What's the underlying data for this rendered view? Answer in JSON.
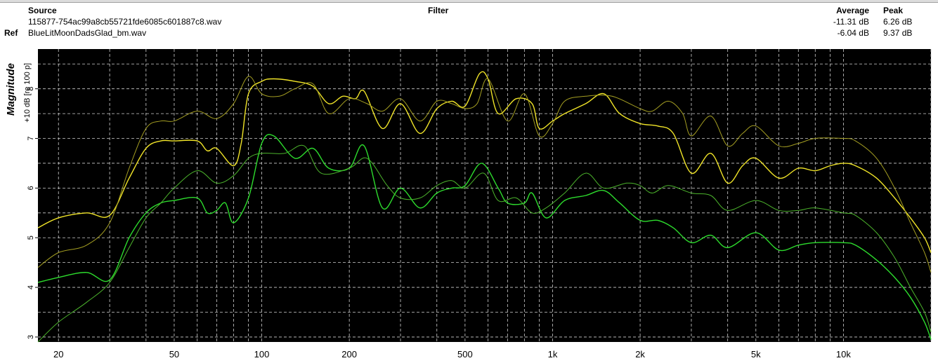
{
  "header": {
    "source_label": "Source",
    "filter_label": "Filter",
    "average_label": "Average",
    "peak_label": "Peak",
    "ref_label": "Ref",
    "source_file": "115877-754ac99a8cb55721fde6085c601887c8.wav",
    "ref_file": "BlueLitMoonDadsGlad_bm.wav",
    "source_average": "-11.31 dB",
    "source_peak": "6.26 dB",
    "ref_average": "-6.04 dB",
    "ref_peak": "9.37 dB"
  },
  "chart_data": {
    "type": "line",
    "ylabel_main": "Magnitude",
    "ylabel_sub": "+10 dB [re 100 p]",
    "xscale": "log",
    "xlim": [
      17,
      20000
    ],
    "ylim": [
      2.9,
      8.8
    ],
    "x_ticks": [
      {
        "v": 20,
        "label": "20"
      },
      {
        "v": 50,
        "label": "50"
      },
      {
        "v": 100,
        "label": "100"
      },
      {
        "v": 200,
        "label": "200"
      },
      {
        "v": 500,
        "label": "500"
      },
      {
        "v": 1000,
        "label": "1k"
      },
      {
        "v": 2000,
        "label": "2k"
      },
      {
        "v": 5000,
        "label": "5k"
      },
      {
        "v": 10000,
        "label": "10k"
      }
    ],
    "y_ticks": [
      3,
      4,
      5,
      6,
      7,
      8
    ],
    "grid": true,
    "background": "#000000",
    "series": [
      {
        "color": "#f0e428",
        "width": 1.4,
        "points": [
          [
            17,
            5.2
          ],
          [
            20,
            5.4
          ],
          [
            25,
            5.5
          ],
          [
            30,
            5.45
          ],
          [
            35,
            6.2
          ],
          [
            40,
            6.8
          ],
          [
            45,
            6.95
          ],
          [
            50,
            6.95
          ],
          [
            60,
            6.95
          ],
          [
            65,
            6.75
          ],
          [
            70,
            6.8
          ],
          [
            80,
            6.45
          ],
          [
            85,
            6.9
          ],
          [
            90,
            7.9
          ],
          [
            100,
            8.15
          ],
          [
            110,
            8.2
          ],
          [
            130,
            8.15
          ],
          [
            150,
            8.05
          ],
          [
            170,
            7.7
          ],
          [
            190,
            7.85
          ],
          [
            210,
            7.8
          ],
          [
            225,
            7.95
          ],
          [
            260,
            7.2
          ],
          [
            300,
            7.7
          ],
          [
            350,
            7.1
          ],
          [
            400,
            7.6
          ],
          [
            450,
            7.75
          ],
          [
            500,
            7.65
          ],
          [
            560,
            8.3
          ],
          [
            600,
            8.2
          ],
          [
            650,
            7.5
          ],
          [
            750,
            7.8
          ],
          [
            850,
            7.7
          ],
          [
            900,
            7.2
          ],
          [
            1000,
            7.35
          ],
          [
            1100,
            7.5
          ],
          [
            1300,
            7.7
          ],
          [
            1500,
            7.9
          ],
          [
            1700,
            7.5
          ],
          [
            2000,
            7.3
          ],
          [
            2300,
            7.25
          ],
          [
            2600,
            7.1
          ],
          [
            3000,
            6.3
          ],
          [
            3500,
            6.7
          ],
          [
            4000,
            6.1
          ],
          [
            4500,
            6.45
          ],
          [
            5000,
            6.6
          ],
          [
            6000,
            6.2
          ],
          [
            7000,
            6.4
          ],
          [
            8000,
            6.35
          ],
          [
            9000,
            6.45
          ],
          [
            10000,
            6.5
          ],
          [
            11000,
            6.45
          ],
          [
            13000,
            6.2
          ],
          [
            15000,
            5.8
          ],
          [
            17000,
            5.4
          ],
          [
            19000,
            5.0
          ],
          [
            20000,
            4.7
          ]
        ]
      },
      {
        "color": "#a49e22",
        "width": 1.0,
        "points": [
          [
            17,
            4.4
          ],
          [
            20,
            4.7
          ],
          [
            25,
            4.85
          ],
          [
            30,
            5.3
          ],
          [
            35,
            6.4
          ],
          [
            40,
            7.2
          ],
          [
            45,
            7.35
          ],
          [
            50,
            7.35
          ],
          [
            60,
            7.55
          ],
          [
            70,
            7.4
          ],
          [
            80,
            7.7
          ],
          [
            90,
            8.25
          ],
          [
            100,
            7.9
          ],
          [
            115,
            7.85
          ],
          [
            130,
            8.0
          ],
          [
            150,
            8.1
          ],
          [
            170,
            7.5
          ],
          [
            200,
            7.8
          ],
          [
            230,
            7.7
          ],
          [
            260,
            7.55
          ],
          [
            300,
            7.8
          ],
          [
            350,
            7.35
          ],
          [
            400,
            7.75
          ],
          [
            450,
            7.7
          ],
          [
            500,
            7.6
          ],
          [
            550,
            7.7
          ],
          [
            600,
            8.2
          ],
          [
            700,
            7.35
          ],
          [
            800,
            7.9
          ],
          [
            900,
            7.05
          ],
          [
            1000,
            7.3
          ],
          [
            1100,
            7.75
          ],
          [
            1300,
            7.85
          ],
          [
            1600,
            7.85
          ],
          [
            2000,
            7.6
          ],
          [
            2200,
            7.55
          ],
          [
            2500,
            7.75
          ],
          [
            2800,
            7.5
          ],
          [
            3000,
            7.05
          ],
          [
            3500,
            7.45
          ],
          [
            4000,
            6.85
          ],
          [
            4500,
            7.1
          ],
          [
            5000,
            7.25
          ],
          [
            6000,
            6.85
          ],
          [
            7000,
            6.9
          ],
          [
            8000,
            7.0
          ],
          [
            10000,
            7.0
          ],
          [
            11000,
            6.95
          ],
          [
            13000,
            6.6
          ],
          [
            15000,
            6.0
          ],
          [
            17000,
            5.3
          ],
          [
            19000,
            4.7
          ],
          [
            20000,
            4.3
          ]
        ]
      },
      {
        "color": "#2ddc2d",
        "width": 1.4,
        "points": [
          [
            17,
            4.1
          ],
          [
            20,
            4.2
          ],
          [
            25,
            4.3
          ],
          [
            30,
            4.15
          ],
          [
            35,
            5.0
          ],
          [
            40,
            5.5
          ],
          [
            45,
            5.7
          ],
          [
            50,
            5.75
          ],
          [
            60,
            5.8
          ],
          [
            65,
            5.5
          ],
          [
            70,
            5.55
          ],
          [
            75,
            5.7
          ],
          [
            80,
            5.3
          ],
          [
            90,
            5.8
          ],
          [
            100,
            6.9
          ],
          [
            110,
            7.05
          ],
          [
            130,
            6.6
          ],
          [
            150,
            6.8
          ],
          [
            170,
            6.4
          ],
          [
            200,
            6.4
          ],
          [
            225,
            6.85
          ],
          [
            260,
            5.6
          ],
          [
            300,
            6.0
          ],
          [
            350,
            5.6
          ],
          [
            400,
            5.9
          ],
          [
            450,
            6.0
          ],
          [
            500,
            6.05
          ],
          [
            570,
            6.5
          ],
          [
            650,
            6.0
          ],
          [
            700,
            5.7
          ],
          [
            800,
            5.7
          ],
          [
            850,
            5.9
          ],
          [
            950,
            5.4
          ],
          [
            1100,
            5.75
          ],
          [
            1300,
            5.85
          ],
          [
            1500,
            5.95
          ],
          [
            1700,
            5.7
          ],
          [
            2000,
            5.35
          ],
          [
            2300,
            5.35
          ],
          [
            2600,
            5.2
          ],
          [
            3000,
            4.9
          ],
          [
            3500,
            5.05
          ],
          [
            4000,
            4.8
          ],
          [
            5000,
            5.1
          ],
          [
            6000,
            4.75
          ],
          [
            7000,
            4.85
          ],
          [
            8000,
            4.9
          ],
          [
            10000,
            4.9
          ],
          [
            11000,
            4.85
          ],
          [
            13000,
            4.55
          ],
          [
            15000,
            4.2
          ],
          [
            17000,
            3.8
          ],
          [
            19000,
            3.3
          ],
          [
            20000,
            2.95
          ]
        ]
      },
      {
        "color": "#4cb42c",
        "width": 1.0,
        "points": [
          [
            17,
            2.9
          ],
          [
            20,
            3.3
          ],
          [
            25,
            3.7
          ],
          [
            30,
            4.1
          ],
          [
            35,
            4.8
          ],
          [
            40,
            5.4
          ],
          [
            45,
            5.7
          ],
          [
            50,
            6.0
          ],
          [
            60,
            6.35
          ],
          [
            70,
            6.1
          ],
          [
            80,
            6.25
          ],
          [
            90,
            6.6
          ],
          [
            100,
            6.7
          ],
          [
            120,
            6.7
          ],
          [
            140,
            6.85
          ],
          [
            160,
            6.3
          ],
          [
            200,
            6.4
          ],
          [
            230,
            6.6
          ],
          [
            270,
            6.05
          ],
          [
            300,
            5.8
          ],
          [
            350,
            5.8
          ],
          [
            400,
            6.05
          ],
          [
            450,
            6.15
          ],
          [
            500,
            6.0
          ],
          [
            580,
            6.3
          ],
          [
            650,
            5.75
          ],
          [
            750,
            5.8
          ],
          [
            850,
            5.5
          ],
          [
            950,
            5.6
          ],
          [
            1100,
            5.9
          ],
          [
            1300,
            6.3
          ],
          [
            1500,
            6.0
          ],
          [
            1800,
            6.1
          ],
          [
            2000,
            6.05
          ],
          [
            2200,
            5.9
          ],
          [
            2500,
            6.05
          ],
          [
            3000,
            5.9
          ],
          [
            3500,
            5.85
          ],
          [
            4000,
            5.55
          ],
          [
            5000,
            5.75
          ],
          [
            6000,
            5.55
          ],
          [
            7000,
            5.55
          ],
          [
            8000,
            5.6
          ],
          [
            10000,
            5.5
          ],
          [
            11000,
            5.45
          ],
          [
            13000,
            5.1
          ],
          [
            15000,
            4.6
          ],
          [
            17000,
            4.0
          ],
          [
            19000,
            3.5
          ],
          [
            20000,
            3.1
          ]
        ]
      }
    ]
  }
}
